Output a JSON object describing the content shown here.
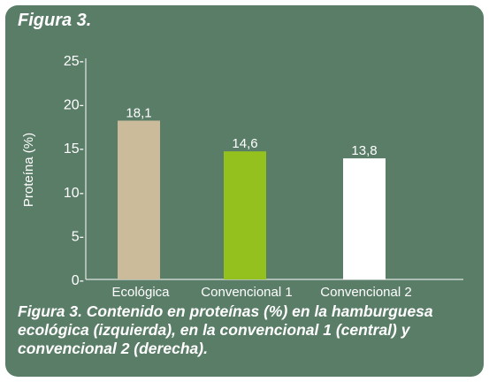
{
  "figure": {
    "label": "Figura 3.",
    "caption": "Figura 3. Contenido en proteínas (%) en la hamburguesa ecológica (izquierda), en la convencional 1 (central) y convencional 2 (derecha)."
  },
  "chart_data": {
    "type": "bar",
    "title": "",
    "xlabel": "",
    "ylabel": "Proteína (%)",
    "categories": [
      "Ecológica",
      "Convencional 1",
      "Convencional 2"
    ],
    "values": [
      18.1,
      14.6,
      13.8
    ],
    "value_labels": [
      "18,1",
      "14,6",
      "13,8"
    ],
    "bar_colors": [
      "#cbbb9b",
      "#95c11f",
      "#ffffff"
    ],
    "ylim": [
      0,
      25
    ],
    "yticks": [
      0,
      5,
      10,
      15,
      20,
      25
    ],
    "ytick_labels": [
      "0-",
      "5-",
      "10-",
      "15-",
      "20-",
      "25-"
    ],
    "grid": false,
    "legend": "none"
  }
}
